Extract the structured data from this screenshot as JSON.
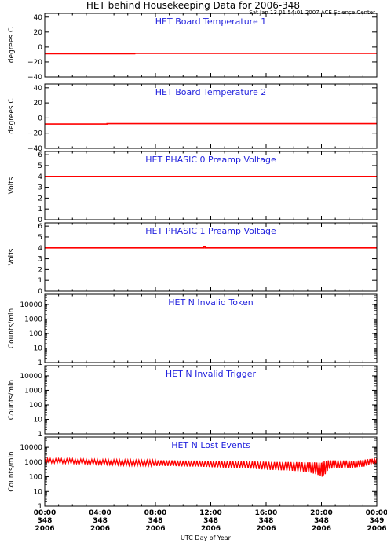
{
  "title": "HET behind Housekeeping Data for 2006-348",
  "subtitle": "Sat Jan 13 01:54:01 2007 ACE Science Center",
  "colors": {
    "data": "#ff0000",
    "panel_title": "#2222dd",
    "axis": "#000000"
  },
  "x_axis": {
    "label": "UTC Day of Year",
    "tick_labels": [
      [
        "00:00",
        "348",
        "2006"
      ],
      [
        "04:00",
        "348",
        "2006"
      ],
      [
        "08:00",
        "348",
        "2006"
      ],
      [
        "12:00",
        "348",
        "2006"
      ],
      [
        "16:00",
        "348",
        "2006"
      ],
      [
        "20:00",
        "348",
        "2006"
      ],
      [
        "00:00",
        "349",
        "2006"
      ]
    ]
  },
  "chart_data": [
    {
      "type": "line",
      "title": "HET Board Temperature 1",
      "ylabel": "degrees C",
      "ylim": [
        -40,
        45
      ],
      "yscale": "linear",
      "yticks": [
        -40,
        -20,
        0,
        20,
        40
      ],
      "ytick_labels": [
        "−40",
        "−20",
        "0",
        "20",
        "40"
      ],
      "xlim": [
        0,
        24
      ],
      "series": [
        {
          "x": [
            0,
            6.5,
            6.5,
            24
          ],
          "y": [
            -9,
            -9,
            -8.5,
            -8.5
          ]
        }
      ]
    },
    {
      "type": "line",
      "title": "HET Board Temperature 2",
      "ylabel": "degrees C",
      "ylim": [
        -40,
        45
      ],
      "yscale": "linear",
      "yticks": [
        -40,
        -20,
        0,
        20,
        40
      ],
      "ytick_labels": [
        "−40",
        "−20",
        "0",
        "20",
        "40"
      ],
      "xlim": [
        0,
        24
      ],
      "series": [
        {
          "x": [
            0,
            4.5,
            4.5,
            24
          ],
          "y": [
            -8,
            -8,
            -7.5,
            -7.5
          ]
        }
      ]
    },
    {
      "type": "line",
      "title": "HET PHASIC 0 Preamp Voltage",
      "ylabel": "Volts",
      "ylim": [
        0,
        6.3
      ],
      "yscale": "linear",
      "yticks": [
        0,
        1,
        2,
        3,
        4,
        5,
        6
      ],
      "ytick_labels": [
        "0",
        "1",
        "2",
        "3",
        "4",
        "5",
        "6"
      ],
      "xlim": [
        0,
        24
      ],
      "series": [
        {
          "x": [
            0,
            24
          ],
          "y": [
            4,
            4
          ]
        }
      ]
    },
    {
      "type": "line",
      "title": "HET PHASIC 1 Preamp Voltage",
      "ylabel": "Volts",
      "ylim": [
        0,
        6.3
      ],
      "yscale": "linear",
      "yticks": [
        0,
        1,
        2,
        3,
        4,
        5,
        6
      ],
      "ytick_labels": [
        "0",
        "1",
        "2",
        "3",
        "4",
        "5",
        "6"
      ],
      "xlim": [
        0,
        24
      ],
      "series": [
        {
          "x": [
            0,
            11.5,
            11.5,
            11.6,
            11.6,
            24
          ],
          "y": [
            4,
            4,
            4.12,
            4.12,
            4,
            4
          ]
        }
      ]
    },
    {
      "type": "line",
      "title": "HET N Invalid Token",
      "ylabel": "Counts/min",
      "ylim": [
        1,
        50000
      ],
      "yscale": "log",
      "yticks": [
        1,
        10,
        100,
        1000,
        10000
      ],
      "ytick_labels": [
        "1",
        "10",
        "100",
        "1000",
        "10000"
      ],
      "xlim": [
        0,
        24
      ],
      "series": []
    },
    {
      "type": "line",
      "title": "HET N Invalid Trigger",
      "ylabel": "Counts/min",
      "ylim": [
        1,
        50000
      ],
      "yscale": "log",
      "yticks": [
        1,
        10,
        100,
        1000,
        10000
      ],
      "ytick_labels": [
        "1",
        "10",
        "100",
        "1000",
        "10000"
      ],
      "xlim": [
        0,
        24
      ],
      "series": []
    },
    {
      "type": "line",
      "title": "HET N Lost Events",
      "ylabel": "Counts/min",
      "ylim": [
        1,
        50000
      ],
      "yscale": "log",
      "yticks": [
        1,
        10,
        100,
        1000,
        10000
      ],
      "ytick_labels": [
        "1",
        "10",
        "100",
        "1000",
        "10000"
      ],
      "xlim": [
        0,
        24
      ],
      "series": [
        {
          "band": true,
          "x": [
            0,
            1,
            2,
            3,
            4,
            5,
            6,
            7,
            8,
            9,
            10,
            11,
            12,
            13,
            14,
            15,
            16,
            17,
            18,
            19,
            19.5,
            20,
            20.2,
            20.5,
            21,
            22,
            22.5,
            23,
            23.5,
            24
          ],
          "hi": [
            1700,
            1650,
            1600,
            1500,
            1450,
            1400,
            1350,
            1300,
            1300,
            1300,
            1250,
            1250,
            1200,
            1200,
            1150,
            1100,
            1050,
            1000,
            1000,
            950,
            950,
            900,
            1100,
            1300,
            1300,
            1250,
            1200,
            1400,
            1600,
            1800
          ],
          "lo": [
            900,
            850,
            800,
            750,
            700,
            650,
            600,
            600,
            550,
            550,
            500,
            500,
            450,
            420,
            400,
            350,
            300,
            280,
            250,
            200,
            150,
            100,
            150,
            350,
            400,
            400,
            450,
            500,
            700,
            900
          ]
        }
      ]
    }
  ]
}
